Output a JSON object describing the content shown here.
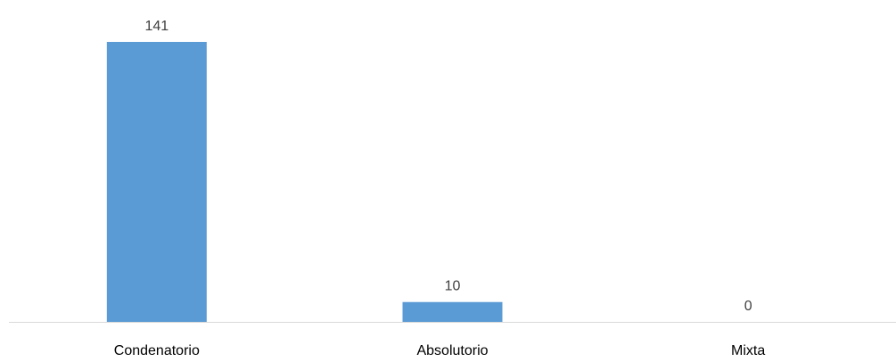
{
  "chart_data": {
    "type": "bar",
    "categories": [
      "Condenatorio",
      "Absolutorio",
      "Mixta"
    ],
    "values": [
      141,
      10,
      0
    ],
    "data_labels": [
      "141",
      "10",
      "0"
    ],
    "ylim": [
      0,
      141
    ],
    "grid": false,
    "legend": "none",
    "colors": {
      "bar": "#5B9BD5",
      "axis": "#D9D9D9",
      "label": "#404040"
    }
  }
}
